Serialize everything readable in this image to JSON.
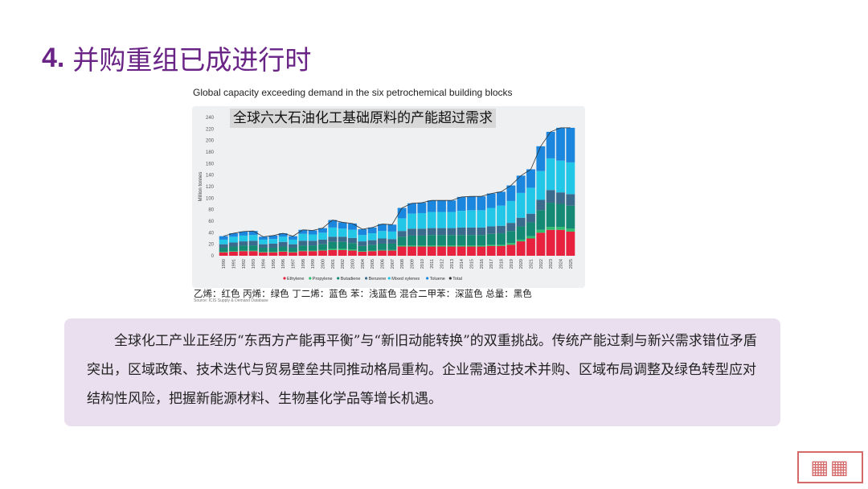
{
  "header": {
    "number": "4.",
    "title": "并购重组已成进行时"
  },
  "chart_header": "Global capacity exceeding demand in the six petrochemical building blocks",
  "overlay_title": "全球六大石油化工基础原料的产能超过需求",
  "colors": {
    "title": "#6a2486",
    "Ethylene": "#e8213f",
    "Propylene": "#2dbf6e",
    "Butadiene": "#148a74",
    "Benzene": "#3a6b8c",
    "Mixed xylenes": "#22c7e8",
    "Toluene": "#1b86dd",
    "Total": "#333333"
  },
  "chart_data": {
    "type": "bar",
    "ylabel": "Million tonnes",
    "ylim": [
      0,
      240
    ],
    "yticks": [
      0,
      20,
      40,
      60,
      80,
      100,
      120,
      140,
      160,
      180,
      200,
      220,
      240
    ],
    "categories": [
      "1990",
      "1991",
      "1992",
      "1993",
      "1994",
      "1995",
      "1996",
      "1997",
      "1998",
      "1999",
      "2000",
      "2001",
      "2002",
      "2003",
      "2004",
      "2005",
      "2006",
      "2007",
      "2008",
      "2009",
      "2010",
      "2011",
      "2012",
      "2013",
      "2014",
      "2015",
      "2016",
      "2017",
      "2018",
      "2019",
      "2020",
      "2021",
      "2022",
      "2023",
      "2024",
      "2025"
    ],
    "series": [
      {
        "name": "Ethylene",
        "values": [
          6,
          7,
          8,
          8,
          6,
          6,
          7,
          6,
          8,
          8,
          9,
          10,
          10,
          9,
          7,
          8,
          9,
          9,
          16,
          16,
          16,
          16,
          16,
          16,
          16,
          16,
          16,
          17,
          17,
          19,
          25,
          30,
          40,
          45,
          45,
          42
        ]
      },
      {
        "name": "Propylene",
        "values": [
          1,
          1,
          1,
          1,
          1,
          1,
          1,
          1,
          1,
          1,
          1,
          2,
          2,
          2,
          1,
          1,
          1,
          1,
          2,
          2,
          2,
          2,
          2,
          2,
          2,
          2,
          2,
          2,
          2,
          3,
          3,
          4,
          5,
          5,
          5,
          5
        ]
      },
      {
        "name": "Butadiene",
        "values": [
          7,
          8,
          9,
          9,
          7,
          7,
          8,
          7,
          9,
          9,
          10,
          12,
          12,
          11,
          9,
          10,
          11,
          11,
          15,
          17,
          17,
          18,
          18,
          18,
          18,
          18,
          18,
          19,
          20,
          21,
          23,
          24,
          34,
          42,
          40,
          40
        ]
      },
      {
        "name": "Benzene",
        "values": [
          6,
          7,
          7,
          8,
          6,
          7,
          8,
          6,
          8,
          8,
          8,
          9,
          9,
          9,
          8,
          8,
          9,
          8,
          10,
          12,
          12,
          12,
          12,
          12,
          13,
          13,
          13,
          13,
          13,
          14,
          15,
          15,
          18,
          22,
          20,
          20
        ]
      },
      {
        "name": "Mixed xylenes",
        "values": [
          8,
          10,
          10,
          10,
          8,
          8,
          9,
          8,
          12,
          11,
          12,
          16,
          14,
          14,
          11,
          12,
          13,
          13,
          22,
          26,
          27,
          28,
          28,
          28,
          29,
          30,
          30,
          32,
          35,
          38,
          43,
          45,
          50,
          55,
          55,
          55
        ]
      },
      {
        "name": "Toluene",
        "values": [
          6,
          6,
          7,
          7,
          5,
          6,
          6,
          6,
          7,
          7,
          8,
          13,
          11,
          11,
          10,
          10,
          12,
          12,
          18,
          18,
          18,
          20,
          20,
          20,
          24,
          24,
          24,
          25,
          24,
          27,
          30,
          32,
          43,
          46,
          57,
          60
        ]
      }
    ],
    "total": [
      34,
      39,
      42,
      43,
      33,
      35,
      39,
      34,
      45,
      44,
      48,
      62,
      58,
      56,
      46,
      49,
      55,
      54,
      83,
      91,
      92,
      96,
      96,
      96,
      102,
      103,
      103,
      108,
      111,
      122,
      139,
      150,
      190,
      215,
      222,
      222
    ],
    "legend": [
      "Ethylene",
      "Propylene",
      "Butadiene",
      "Benzene",
      "Mixed xylenes",
      "Toluene",
      "Total"
    ],
    "legend_position": "bottom",
    "grid": false
  },
  "legend_note": "乙烯：红色  丙烯：绿色  丁二烯：蓝色  苯：浅蓝色  混合二甲苯：深蓝色  总量：黑色",
  "source": "Source: ICIS Supply & Demand Database",
  "summary_text": "全球化工产业正经历“东西方产能再平衡”与“新旧动能转换”的双重挑战。传统产能过剩与新兴需求错位矛盾突出，区域政策、技术迭代与贸易壁垒共同推动格局重构。企业需通过技术并购、区域布局调整及绿色转型应对结构性风险，把握新能源材料、生物基化学品等增长机遇。"
}
